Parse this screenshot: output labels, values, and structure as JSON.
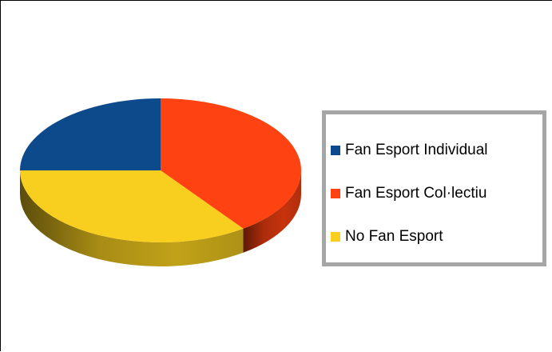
{
  "chart_data": {
    "type": "pie",
    "style": "3d",
    "title": "",
    "categories": [
      "Fan Esport Individual",
      "Fan Esport Col·lectiu",
      "No Fan Esport"
    ],
    "values": [
      25,
      40,
      35
    ],
    "unit": "percent (estimated)",
    "legend_position": "right",
    "series": [
      {
        "name": "Fan Esport Individual",
        "value": 25,
        "color": "#0d4a8c"
      },
      {
        "name": "Fan Esport Col·lectiu",
        "value": 40,
        "color": "#ff4211"
      },
      {
        "name": "No Fan Esport",
        "value": 35,
        "color": "#f9cf1f"
      }
    ]
  },
  "colors": {
    "individual": "#0d4a8c",
    "collectiu": "#ff4211",
    "no_fan": "#f9cf1f",
    "legend_border": "#a6a6a6"
  }
}
